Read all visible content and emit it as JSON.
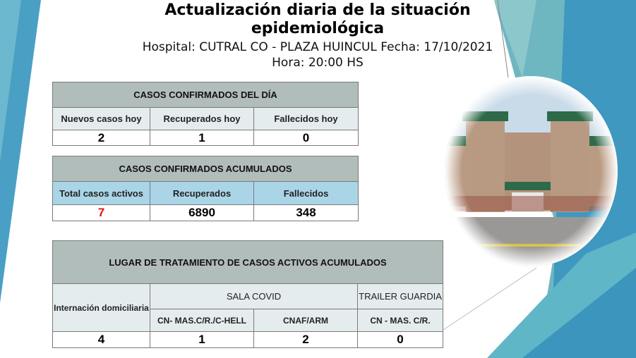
{
  "header": {
    "title": "Actualización diaria de la situación epidemiológica",
    "hospital_line": "Hospital: CUTRAL CO - PLAZA HUINCUL Fecha: 17/10/2021",
    "time_line": "Hora: 20:00 HS"
  },
  "daily": {
    "title": "CASOS CONFIRMADOS DEL DÍA",
    "labels": [
      "Nuevos casos hoy",
      "Recuperados hoy",
      "Fallecidos hoy"
    ],
    "values": [
      "2",
      "1",
      "0"
    ]
  },
  "cumulative": {
    "title": "CASOS CONFIRMADOS ACUMULADOS",
    "labels": [
      "Total casos activos",
      "Recuperados",
      "Fallecidos"
    ],
    "values": [
      "7",
      "6890",
      "348"
    ],
    "highlight_color": "#e01010"
  },
  "treatment": {
    "title": "LUGAR DE TRATAMIENTO DE CASOS ACTIVOS ACUMULADOS",
    "home": "Internación domiciliaria",
    "sala_covid": "SALA COVID",
    "trailer": "TRAILER GUARDIA",
    "sub_labels": [
      "CN- MAS.C/R./C-HELL",
      "CNAF/ARM",
      "CN - MAS. C/R."
    ],
    "values": [
      "4",
      "1",
      "2",
      "0"
    ]
  },
  "image": {
    "subject": "hospital-building-photo"
  },
  "colors": {
    "header_bg": "#b1bdba",
    "label_bg": "#e4ecee",
    "blue_label_bg": "#a9d5e7",
    "accent_teal": "#5fb3bf",
    "accent_blue": "#3d97bf"
  }
}
